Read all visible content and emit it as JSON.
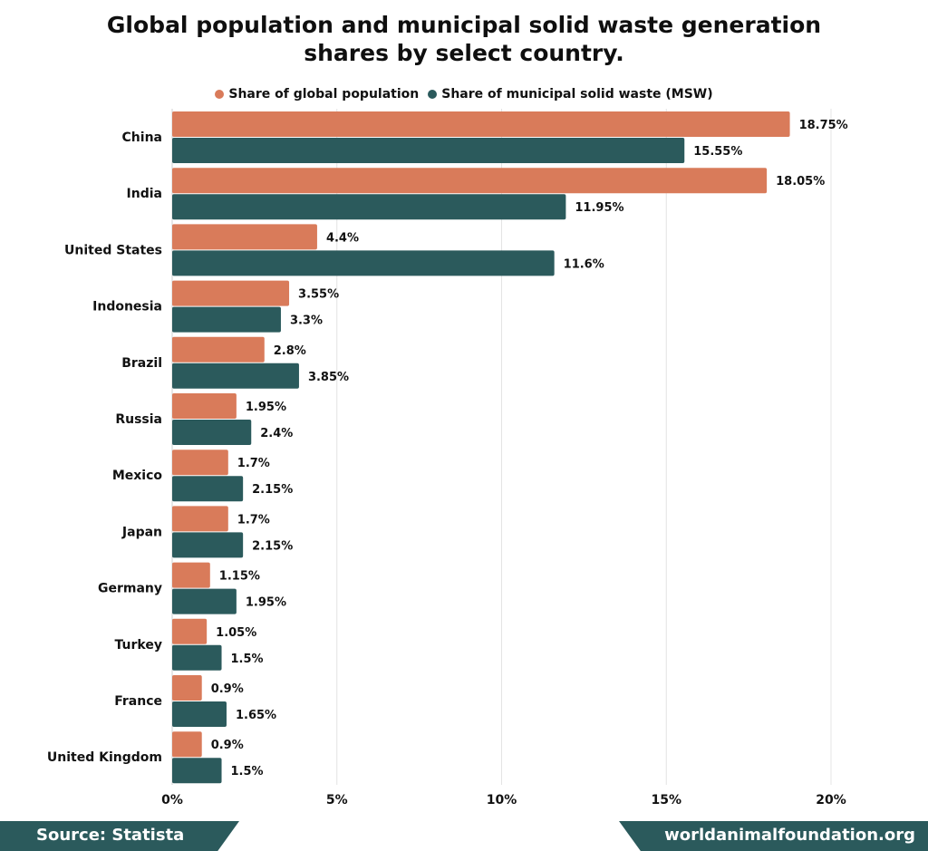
{
  "chart_data": {
    "type": "bar",
    "orientation": "horizontal",
    "title_line1": "Global population and municipal solid waste generation",
    "title_line2": "shares by select country.",
    "categories": [
      "China",
      "India",
      "United States",
      "Indonesia",
      "Brazil",
      "Russia",
      "Mexico",
      "Japan",
      "Germany",
      "Turkey",
      "France",
      "United Kingdom"
    ],
    "series": [
      {
        "name": "Share of global population",
        "color": "#d97b5a",
        "values": [
          18.75,
          18.05,
          4.4,
          3.55,
          2.8,
          1.95,
          1.7,
          1.7,
          1.15,
          1.05,
          0.9,
          0.9
        ],
        "labels": [
          "18.75%",
          "18.05%",
          "4.4%",
          "3.55%",
          "2.8%",
          "1.95%",
          "1.7%",
          "1.7%",
          "1.15%",
          "1.05%",
          "0.9%",
          "0.9%"
        ]
      },
      {
        "name": "Share of municipal solid waste (MSW)",
        "color": "#2b5a5c",
        "values": [
          15.55,
          11.95,
          11.6,
          3.3,
          3.85,
          2.4,
          2.15,
          2.15,
          1.95,
          1.5,
          1.65,
          1.5
        ],
        "labels": [
          "15.55%",
          "11.95%",
          "11.6%",
          "3.3%",
          "3.85%",
          "2.4%",
          "2.15%",
          "2.15%",
          "1.95%",
          "1.5%",
          "1.65%",
          "1.5%"
        ]
      }
    ],
    "xlim": [
      0,
      20
    ],
    "xticks": [
      0,
      5,
      10,
      15,
      20
    ],
    "xtick_labels": [
      "0%",
      "5%",
      "10%",
      "15%",
      "20%"
    ],
    "grid": true,
    "legend_position": "top"
  },
  "footer": {
    "source": "Source: Statista",
    "website": "worldanimalfoundation.org"
  }
}
